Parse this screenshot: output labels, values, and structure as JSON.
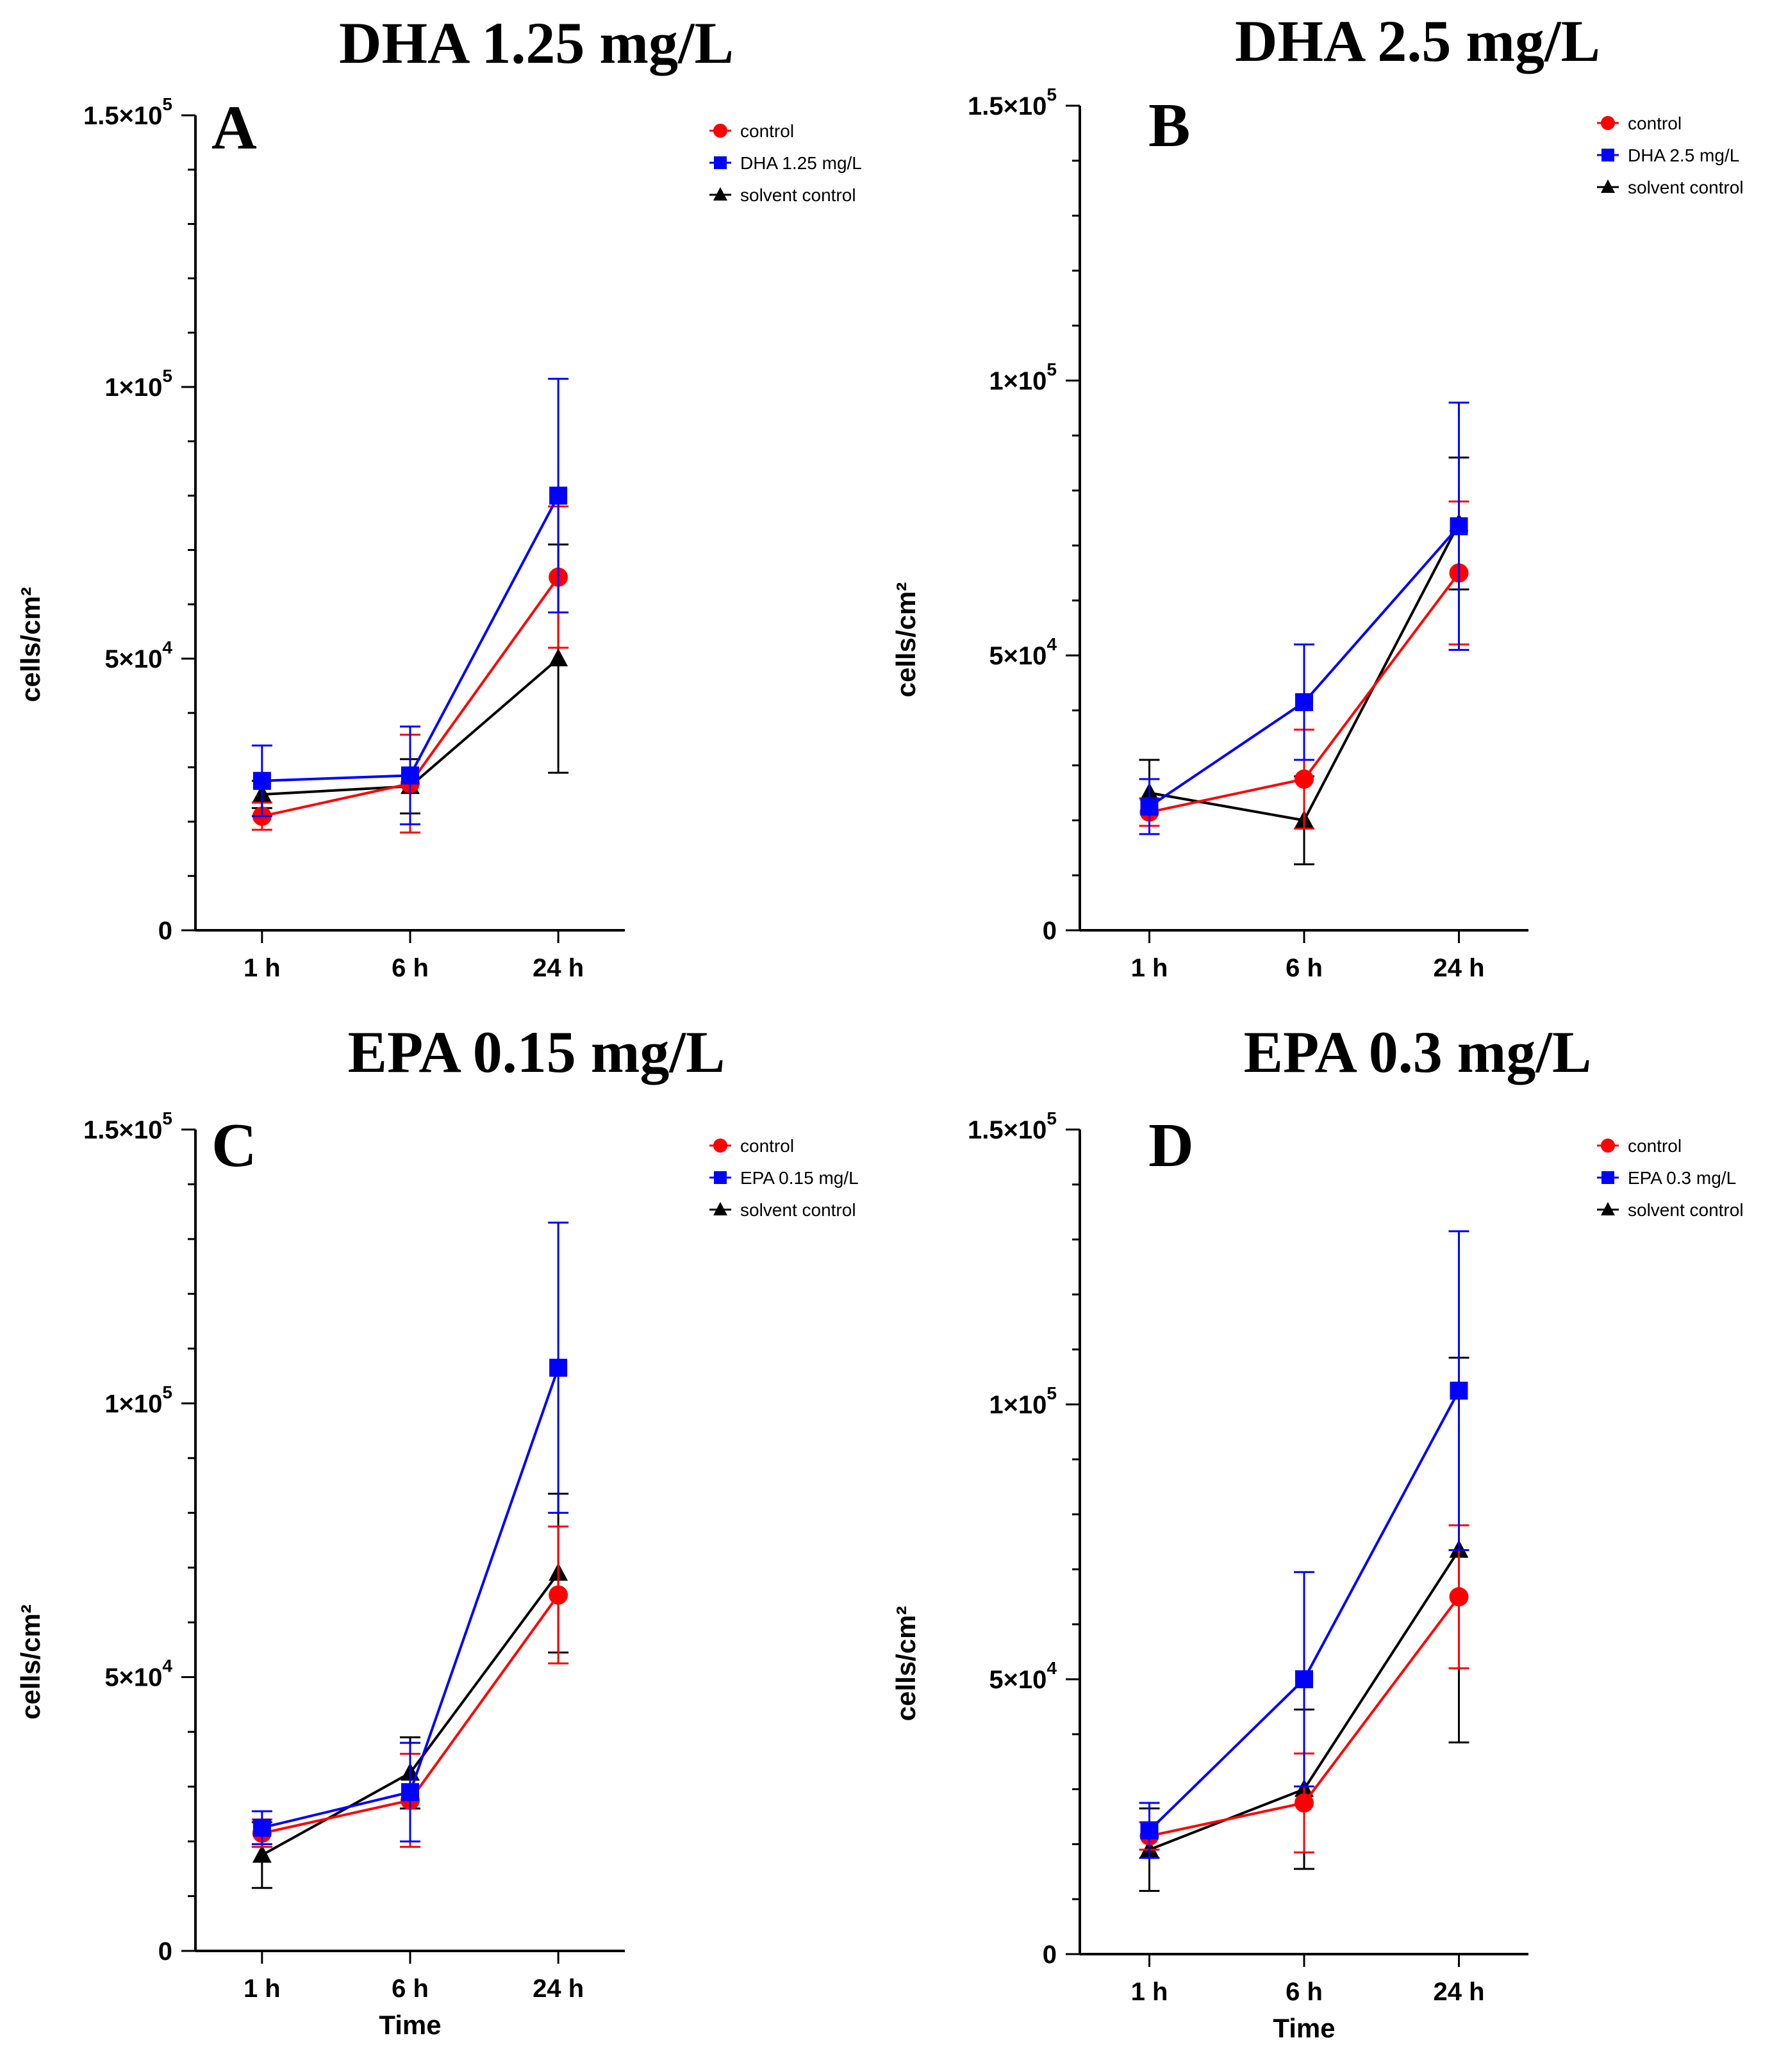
{
  "figure": {
    "y_tick_labels": [
      {
        "value": 0,
        "base": "0",
        "exp": ""
      },
      {
        "value": 50000,
        "base": "5×10",
        "exp": "4"
      },
      {
        "value": 100000,
        "base": "1×10",
        "exp": "5"
      },
      {
        "value": 150000,
        "base": "1.5×10",
        "exp": "5"
      }
    ],
    "colors": {
      "control": "#ff0000",
      "treatment": "#0000ff",
      "solvent": "#000000"
    }
  },
  "chart_data": [
    {
      "type": "line",
      "panel": "A",
      "title": "DHA 1.25 mg/L",
      "ylabel": "cells/cm²",
      "xlabel": "",
      "categories": [
        "1 h",
        "6 h",
        "24 h"
      ],
      "ylim": [
        0,
        150000
      ],
      "legend_position": "top-right",
      "series": [
        {
          "name": "control",
          "color": "#ff0000",
          "marker": "circle",
          "values": [
            21000,
            27000,
            65000
          ],
          "errors": [
            2500,
            9000,
            13000
          ]
        },
        {
          "name": "DHA 1.25 mg/L",
          "color": "#0000ff",
          "marker": "square",
          "values": [
            27500,
            28500,
            80000
          ],
          "errors": [
            6500,
            9000,
            21500
          ]
        },
        {
          "name": "solvent control",
          "color": "#000000",
          "marker": "triangle",
          "values": [
            25000,
            26500,
            50000
          ],
          "errors": [
            2500,
            5000,
            21000
          ]
        }
      ]
    },
    {
      "type": "line",
      "panel": "B",
      "title": "DHA 2.5 mg/L",
      "ylabel": "cells/cm²",
      "xlabel": "",
      "categories": [
        "1 h",
        "6 h",
        "24 h"
      ],
      "ylim": [
        0,
        150000
      ],
      "legend_position": "top-right",
      "series": [
        {
          "name": "control",
          "color": "#ff0000",
          "marker": "circle",
          "values": [
            21500,
            27500,
            65000
          ],
          "errors": [
            2500,
            9000,
            13000
          ]
        },
        {
          "name": "DHA 2.5 mg/L",
          "color": "#0000ff",
          "marker": "square",
          "values": [
            22500,
            41500,
            73500
          ],
          "errors": [
            5000,
            10500,
            22500
          ]
        },
        {
          "name": "solvent control",
          "color": "#000000",
          "marker": "triangle",
          "values": [
            25000,
            20000,
            74000
          ],
          "errors": [
            6000,
            8000,
            12000
          ]
        }
      ]
    },
    {
      "type": "line",
      "panel": "C",
      "title": "EPA 0.15 mg/L",
      "ylabel": "cells/cm²",
      "xlabel": "Time",
      "categories": [
        "1 h",
        "6 h",
        "24 h"
      ],
      "ylim": [
        0,
        150000
      ],
      "legend_position": "top-right",
      "series": [
        {
          "name": "control",
          "color": "#ff0000",
          "marker": "circle",
          "values": [
            21500,
            27500,
            65000
          ],
          "errors": [
            2500,
            8500,
            12500
          ]
        },
        {
          "name": "EPA 0.15 mg/L",
          "color": "#0000ff",
          "marker": "square",
          "values": [
            22500,
            29000,
            106500
          ],
          "errors": [
            3000,
            9000,
            26500
          ]
        },
        {
          "name": "solvent control",
          "color": "#000000",
          "marker": "triangle",
          "values": [
            17500,
            32500,
            69000
          ],
          "errors": [
            6000,
            6500,
            14500
          ]
        }
      ]
    },
    {
      "type": "line",
      "panel": "D",
      "title": "EPA 0.3 mg/L",
      "ylabel": "cells/cm²",
      "xlabel": "Time",
      "categories": [
        "1 h",
        "6 h",
        "24 h"
      ],
      "ylim": [
        0,
        150000
      ],
      "legend_position": "top-right",
      "series": [
        {
          "name": "control",
          "color": "#ff0000",
          "marker": "circle",
          "values": [
            21500,
            27500,
            65000
          ],
          "errors": [
            2500,
            9000,
            13000
          ]
        },
        {
          "name": "EPA 0.3 mg/L",
          "color": "#0000ff",
          "marker": "square",
          "values": [
            22500,
            50000,
            102500
          ],
          "errors": [
            5000,
            19500,
            29000
          ]
        },
        {
          "name": "solvent control",
          "color": "#000000",
          "marker": "triangle",
          "values": [
            19000,
            30000,
            73500
          ],
          "errors": [
            7500,
            14500,
            35000
          ]
        }
      ]
    }
  ]
}
